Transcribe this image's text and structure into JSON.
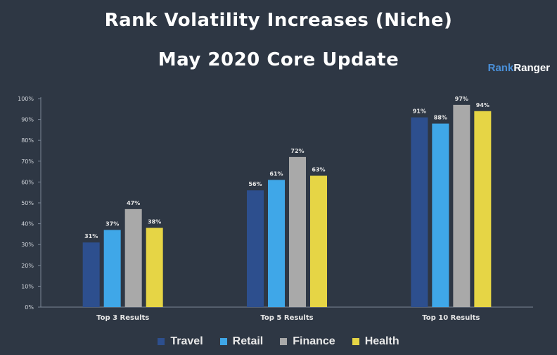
{
  "header": {
    "title_line1": "Rank Volatility Increases (Niche)",
    "title_line2": "May 2020 Core Update",
    "brand_part1": "Rank",
    "brand_part2": "Ranger"
  },
  "chart_data": {
    "type": "bar",
    "categories": [
      "Top 3 Results",
      "Top 5 Results",
      "Top 10 Results"
    ],
    "series": [
      {
        "name": "Travel",
        "color": "#2d4f8e",
        "values": [
          31,
          56,
          91
        ]
      },
      {
        "name": "Retail",
        "color": "#3fa7e8",
        "values": [
          37,
          61,
          88
        ]
      },
      {
        "name": "Finance",
        "color": "#a9a9a9",
        "values": [
          47,
          72,
          97
        ]
      },
      {
        "name": "Health",
        "color": "#e6d545",
        "values": [
          38,
          63,
          94
        ]
      }
    ],
    "value_labels": [
      [
        "31%",
        "56%",
        "91%"
      ],
      [
        "37%",
        "61%",
        "88%"
      ],
      [
        "47%",
        "72%",
        "97%"
      ],
      [
        "38%",
        "63%",
        "94%"
      ]
    ],
    "ylim": [
      0,
      100
    ],
    "yticks": [
      "0%",
      "10%",
      "20%",
      "30%",
      "40%",
      "50%",
      "60%",
      "70%",
      "80%",
      "90%",
      "100%"
    ],
    "grid": false,
    "legend_position": "bottom"
  }
}
